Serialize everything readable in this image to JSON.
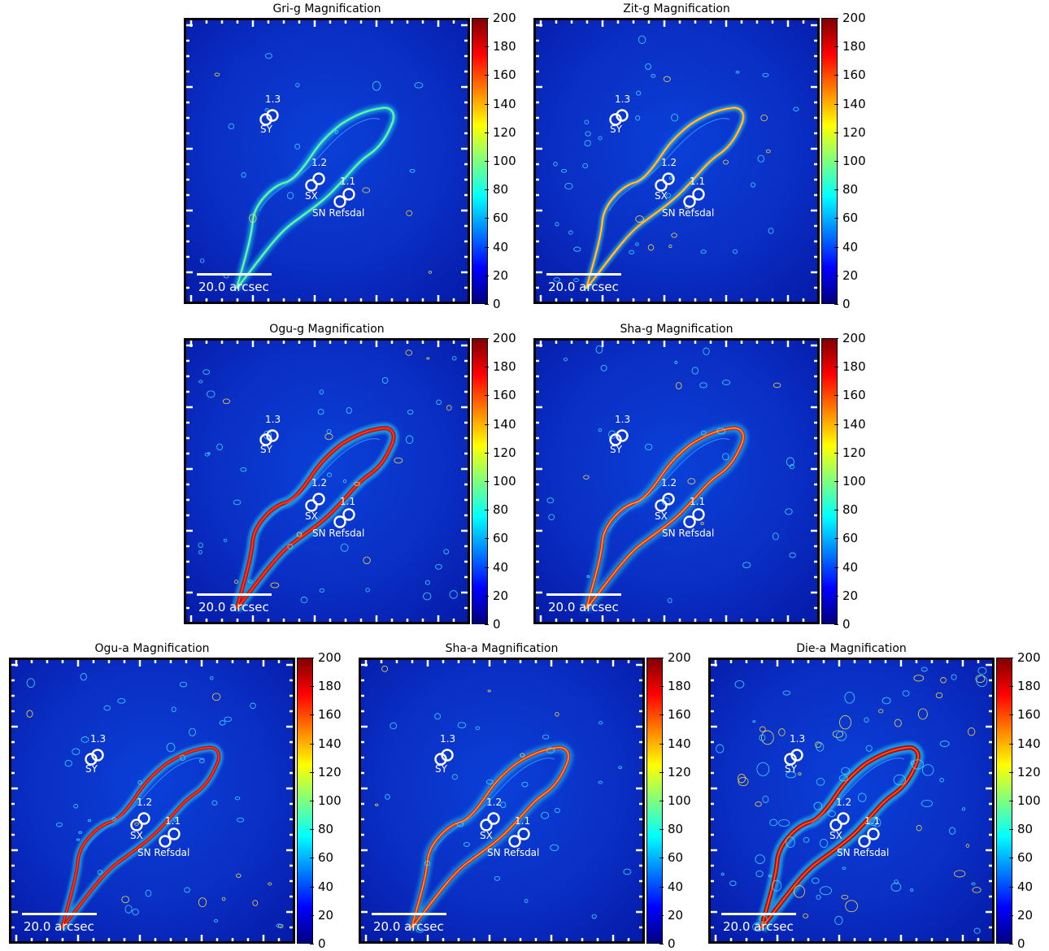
{
  "panels": [
    {
      "id": "p1",
      "title": "Gri-g Magnification"
    },
    {
      "id": "p2",
      "title": "Zit-g Magnification"
    },
    {
      "id": "p3",
      "title": "Ogu-g Magnification"
    },
    {
      "id": "p4",
      "title": "Sha-g Magnification"
    },
    {
      "id": "p5",
      "title": "Ogu-a Magnification"
    },
    {
      "id": "p6",
      "title": "Sha-a Magnification"
    },
    {
      "id": "p7",
      "title": "Die-a Magnification"
    }
  ],
  "labels": {
    "img13": "1.3",
    "img12": "1.2",
    "img11": "1.1",
    "sy": "SY",
    "sx": "SX",
    "sn": "SN Refsdal",
    "scale": "20.0 arcsec"
  },
  "colorbar": {
    "ticks": [
      "200",
      "180",
      "160",
      "140",
      "120",
      "100",
      "80",
      "60",
      "40",
      "20",
      "0"
    ],
    "colors": [
      "#00007f",
      "#0000ff",
      "#007fff",
      "#00ffff",
      "#7fff7f",
      "#ffff00",
      "#ff7f00",
      "#ff0000",
      "#7f0000"
    ]
  },
  "chart_data": [
    {
      "type": "heatmap",
      "title": "Gri-g Magnification",
      "colorbar_range": [
        0,
        200
      ],
      "colormap": "jet",
      "annotations": [
        "1.3",
        "SY",
        "1.2",
        "SX",
        "1.1",
        "SN Refsdal",
        "20.0 arcsec"
      ]
    },
    {
      "type": "heatmap",
      "title": "Zit-g Magnification",
      "colorbar_range": [
        0,
        200
      ],
      "colormap": "jet",
      "annotations": [
        "1.3",
        "SY",
        "1.2",
        "SX",
        "1.1",
        "SN Refsdal",
        "20.0 arcsec"
      ]
    },
    {
      "type": "heatmap",
      "title": "Ogu-g Magnification",
      "colorbar_range": [
        0,
        200
      ],
      "colormap": "jet",
      "annotations": [
        "1.3",
        "SY",
        "1.2",
        "SX",
        "1.1",
        "SN Refsdal",
        "20.0 arcsec"
      ]
    },
    {
      "type": "heatmap",
      "title": "Sha-g Magnification",
      "colorbar_range": [
        0,
        200
      ],
      "colormap": "jet",
      "annotations": [
        "1.3",
        "SY",
        "1.2",
        "SX",
        "1.1",
        "SN Refsdal",
        "20.0 arcsec"
      ]
    },
    {
      "type": "heatmap",
      "title": "Ogu-a Magnification",
      "colorbar_range": [
        0,
        200
      ],
      "colormap": "jet",
      "annotations": [
        "1.3",
        "SY",
        "1.2",
        "SX",
        "1.1",
        "SN Refsdal",
        "20.0 arcsec"
      ]
    },
    {
      "type": "heatmap",
      "title": "Sha-a Magnification",
      "colorbar_range": [
        0,
        200
      ],
      "colormap": "jet",
      "annotations": [
        "1.3",
        "SY",
        "1.2",
        "SX",
        "1.1",
        "SN Refsdal",
        "20.0 arcsec"
      ]
    },
    {
      "type": "heatmap",
      "title": "Die-a Magnification",
      "colorbar_range": [
        0,
        200
      ],
      "colormap": "jet",
      "annotations": [
        "1.3",
        "SY",
        "1.2",
        "SX",
        "1.1",
        "SN Refsdal",
        "20.0 arcsec"
      ]
    }
  ]
}
